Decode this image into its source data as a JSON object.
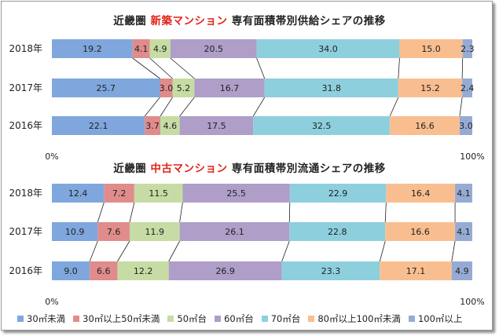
{
  "colors": [
    "#7fa7dd",
    "#e08c8c",
    "#c6dca4",
    "#ae9ec8",
    "#8ecfde",
    "#f9be90",
    "#96abd4"
  ],
  "legend": [
    "30㎡未満",
    "30㎡以上50㎡未満",
    "50㎡台",
    "60㎡台",
    "70㎡台",
    "80㎡以上100㎡未満",
    "100㎡以上"
  ],
  "chart_data": [
    {
      "type": "bar",
      "stacked": true,
      "orientation": "horizontal",
      "title_pre": "近畿圏 ",
      "title_highlight": "新築マンション",
      "title_post": " 専有面積帯別供給シェアの推移",
      "categories": [
        "2018年",
        "2017年",
        "2016年"
      ],
      "series": [
        {
          "name": "30㎡未満",
          "values": [
            19.2,
            25.7,
            22.1
          ]
        },
        {
          "name": "30㎡以上50㎡未満",
          "values": [
            4.1,
            3.0,
            3.7
          ]
        },
        {
          "name": "50㎡台",
          "values": [
            4.9,
            5.2,
            4.6
          ]
        },
        {
          "name": "60㎡台",
          "values": [
            20.5,
            16.7,
            17.5
          ]
        },
        {
          "name": "70㎡台",
          "values": [
            34.0,
            31.8,
            32.5
          ]
        },
        {
          "name": "80㎡以上100㎡未満",
          "values": [
            15.0,
            15.2,
            16.6
          ]
        },
        {
          "name": "100㎡以上",
          "values": [
            2.3,
            2.4,
            3.0
          ]
        }
      ],
      "xlim": [
        0,
        100
      ],
      "xtick_min": "0%",
      "xtick_max": "100%"
    },
    {
      "type": "bar",
      "stacked": true,
      "orientation": "horizontal",
      "title_pre": "近畿圏 ",
      "title_highlight": "中古マンション",
      "title_post": " 専有面積帯別流通シェアの推移",
      "categories": [
        "2018年",
        "2017年",
        "2016年"
      ],
      "series": [
        {
          "name": "30㎡未満",
          "values": [
            12.4,
            10.9,
            9.0
          ]
        },
        {
          "name": "30㎡以上50㎡未満",
          "values": [
            7.2,
            7.6,
            6.6
          ]
        },
        {
          "name": "50㎡台",
          "values": [
            11.5,
            11.9,
            12.2
          ]
        },
        {
          "name": "60㎡台",
          "values": [
            25.5,
            26.1,
            26.9
          ]
        },
        {
          "name": "70㎡台",
          "values": [
            22.9,
            22.8,
            23.3
          ]
        },
        {
          "name": "80㎡以上100㎡未満",
          "values": [
            16.4,
            16.6,
            17.1
          ]
        },
        {
          "name": "100㎡以上",
          "values": [
            4.1,
            4.1,
            4.9
          ]
        }
      ],
      "xlim": [
        0,
        100
      ],
      "xtick_min": "0%",
      "xtick_max": "100%"
    }
  ]
}
